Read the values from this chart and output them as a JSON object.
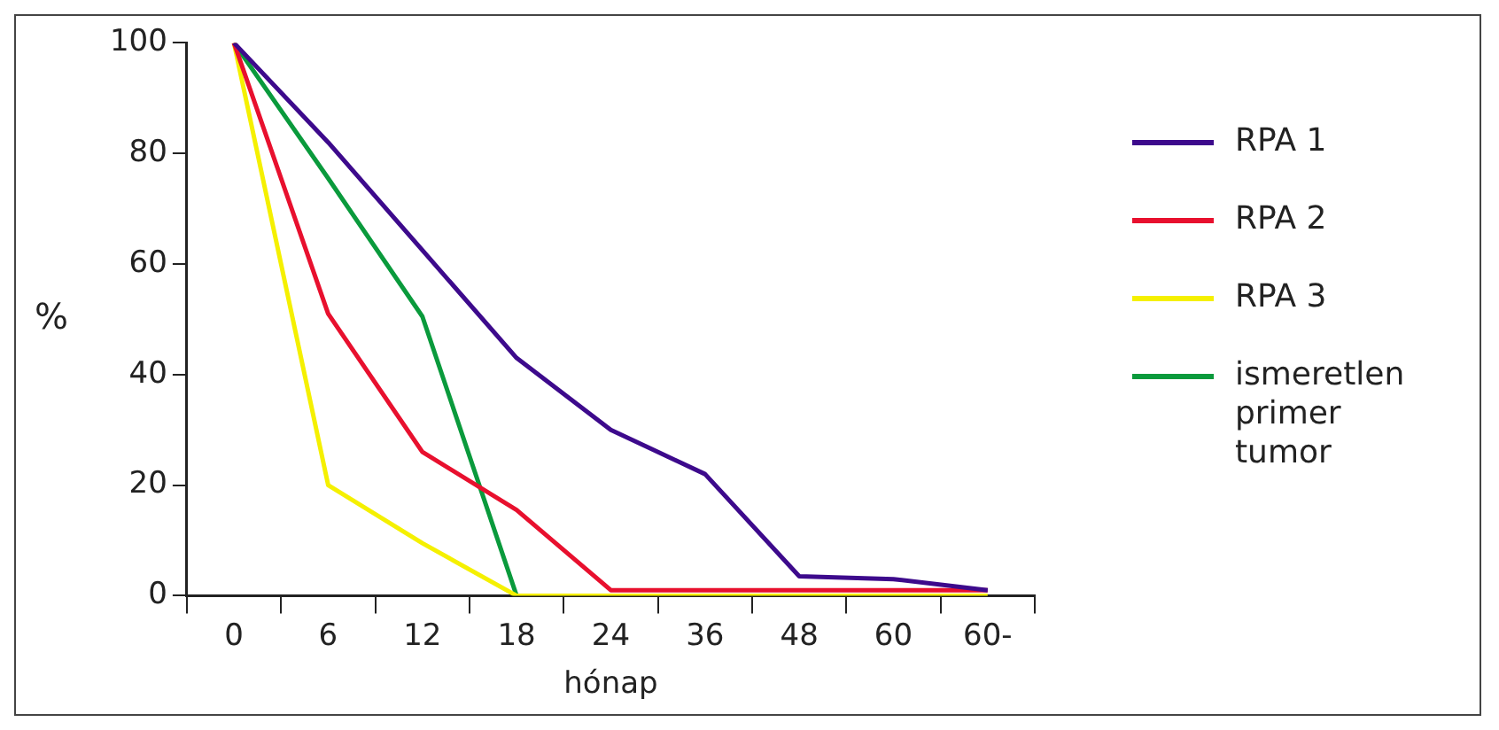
{
  "chart_data": {
    "type": "line",
    "xlabel": "hónap",
    "ylabel": "%",
    "categories": [
      "0",
      "6",
      "12",
      "18",
      "24",
      "36",
      "48",
      "60",
      "60-"
    ],
    "ylim": [
      0,
      100
    ],
    "yticks": [
      0,
      20,
      40,
      60,
      80,
      100
    ],
    "grid": false,
    "legend": "right",
    "marker": "none",
    "line_style": "solid",
    "series": [
      {
        "name": "RPA 1",
        "color": "#3d0a8c",
        "values": [
          100,
          82,
          62.5,
          43,
          30,
          22,
          3.5,
          3,
          1
        ]
      },
      {
        "name": "RPA 2",
        "color": "#e8102e",
        "values": [
          100,
          51,
          26,
          15.5,
          1,
          1,
          1,
          1,
          1
        ]
      },
      {
        "name": "RPA 3",
        "color": "#f5f000",
        "values": [
          100,
          20,
          9.5,
          0,
          0,
          0,
          0,
          0,
          0
        ]
      },
      {
        "name": "ismeretlen primer tumor",
        "color": "#0a9a3c",
        "values": [
          100,
          75.5,
          50.5,
          0,
          null,
          null,
          null,
          null,
          null
        ]
      }
    ]
  }
}
